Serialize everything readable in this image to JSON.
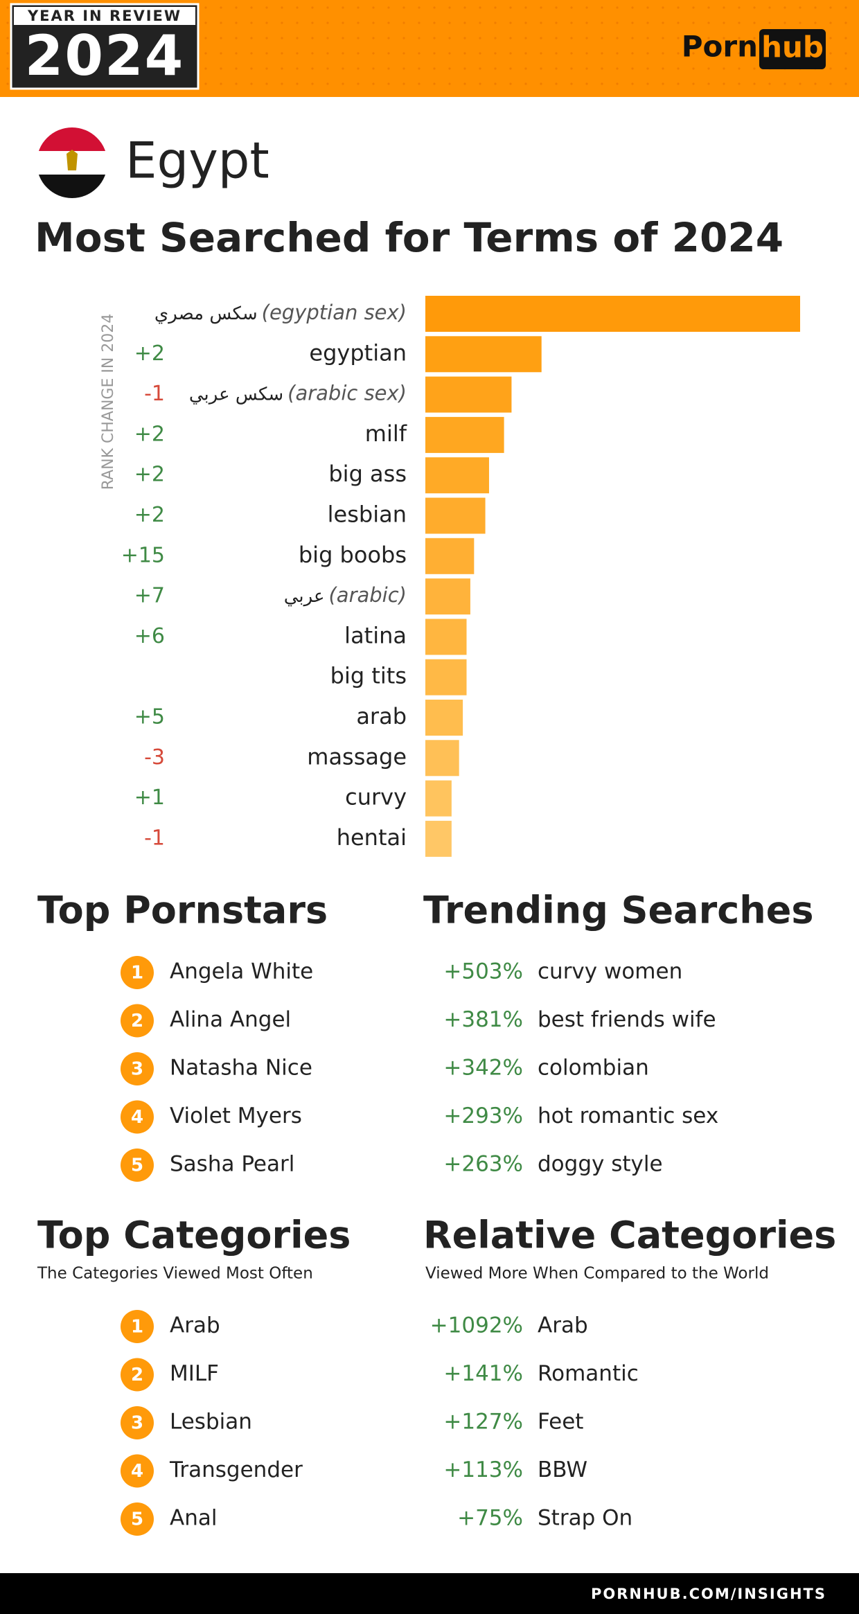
{
  "header": {
    "badge_top": "YEAR IN REVIEW",
    "badge_year": "2024",
    "logo_left": "Porn",
    "logo_right": "hub"
  },
  "country": "Egypt",
  "chart_data": {
    "type": "hbar",
    "title": "Most Searched for Terms of 2024",
    "rank_axis_label": "RANK CHANGE IN 2024",
    "categories": [
      "سكس مصري",
      "egyptian",
      "سكس عربي",
      "milf",
      "big ass",
      "lesbian",
      "big boobs",
      "عربي",
      "latina",
      "big tits",
      "arab",
      "massage",
      "curvy",
      "hentai"
    ],
    "translations": [
      "(egyptian sex)",
      null,
      "(arabic sex)",
      null,
      null,
      null,
      null,
      "(arabic)",
      null,
      null,
      null,
      null,
      null,
      null
    ],
    "rank_changes": [
      null,
      "+2",
      "-1",
      "+2",
      "+2",
      "+2",
      "+15",
      "+7",
      "+6",
      null,
      "+5",
      "-3",
      "+1",
      "-1"
    ],
    "values": [
      100,
      31,
      23,
      21,
      17,
      16,
      13,
      12,
      11,
      11,
      10,
      9,
      7,
      7
    ],
    "xlim": [
      0,
      100
    ],
    "colors": [
      "#ff9a0a",
      "#ffa012",
      "#ffa31a",
      "#ffa720",
      "#ffaa26",
      "#ffac2c",
      "#ffaf33",
      "#ffb33b",
      "#ffb640",
      "#ffb946",
      "#ffbd4e",
      "#ffc056",
      "#ffc45e",
      "#ffc766"
    ]
  },
  "top_pornstars": {
    "title": "Top Pornstars",
    "items": [
      {
        "rank": "1",
        "name": "Angela White"
      },
      {
        "rank": "2",
        "name": "Alina Angel"
      },
      {
        "rank": "3",
        "name": "Natasha Nice"
      },
      {
        "rank": "4",
        "name": "Violet Myers"
      },
      {
        "rank": "5",
        "name": "Sasha Pearl"
      }
    ]
  },
  "trending_searches": {
    "title": "Trending Searches",
    "items": [
      {
        "change": "+503%",
        "term": "curvy women"
      },
      {
        "change": "+381%",
        "term": "best friends wife"
      },
      {
        "change": "+342%",
        "term": "colombian"
      },
      {
        "change": "+293%",
        "term": "hot romantic sex"
      },
      {
        "change": "+263%",
        "term": "doggy style"
      }
    ]
  },
  "top_categories": {
    "title": "Top Categories",
    "subtitle": "The Categories Viewed Most Often",
    "items": [
      {
        "rank": "1",
        "name": "Arab"
      },
      {
        "rank": "2",
        "name": "MILF"
      },
      {
        "rank": "3",
        "name": "Lesbian"
      },
      {
        "rank": "4",
        "name": "Transgender"
      },
      {
        "rank": "5",
        "name": "Anal"
      }
    ]
  },
  "relative_categories": {
    "title": "Relative Categories",
    "subtitle": "Viewed More When Compared to the World",
    "items": [
      {
        "change": "+1092%",
        "term": "Arab"
      },
      {
        "change": "+141%",
        "term": "Romantic"
      },
      {
        "change": "+127%",
        "term": "Feet"
      },
      {
        "change": "+113%",
        "term": "BBW"
      },
      {
        "change": "+75%",
        "term": "Strap On"
      }
    ]
  },
  "footer": "PORNHUB.COM/INSIGHTS"
}
